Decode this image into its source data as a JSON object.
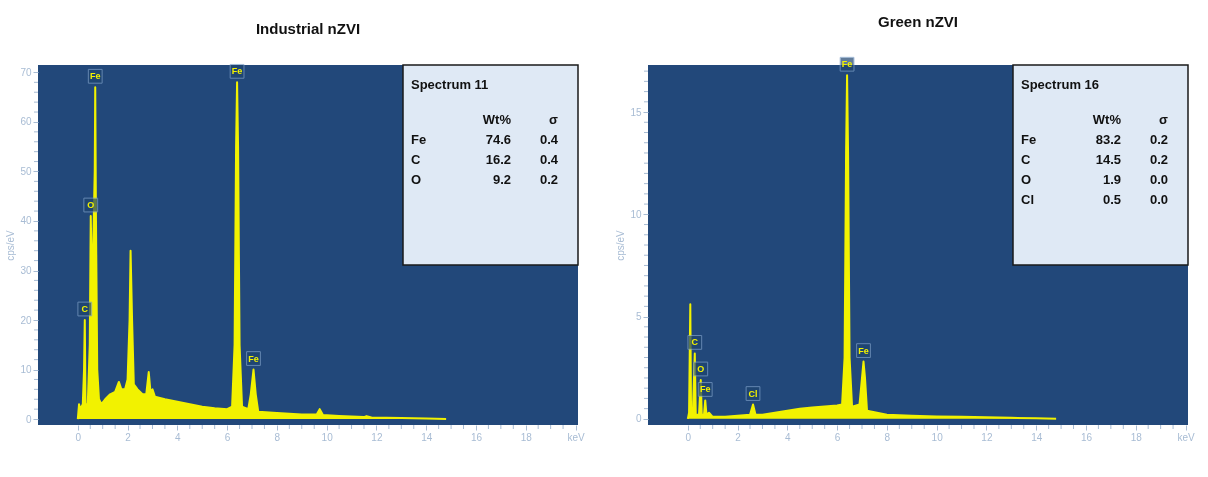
{
  "chart_data": [
    {
      "type": "area",
      "title": "Industrial nZVI",
      "ylabel": "cps/eV",
      "grid": false,
      "xlim": [
        -1.6,
        20.1
      ],
      "ylim": [
        -1.2,
        71.5
      ],
      "xticks": [
        0,
        {
          "value": 0.5,
          "label": null
        },
        {
          "value": 1,
          "label": null
        },
        {
          "value": 1.5,
          "label": null
        },
        2,
        {
          "value": 2.5,
          "label": null
        },
        {
          "value": 3,
          "label": null
        },
        {
          "value": 3.5,
          "label": null
        },
        4,
        {
          "value": 4.5,
          "label": null
        },
        {
          "value": 5,
          "label": null
        },
        {
          "value": 5.5,
          "label": null
        },
        6,
        {
          "value": 6.5,
          "label": null
        },
        {
          "value": 7,
          "label": null
        },
        {
          "value": 7.5,
          "label": null
        },
        8,
        {
          "value": 8.5,
          "label": null
        },
        {
          "value": 9,
          "label": null
        },
        {
          "value": 9.5,
          "label": null
        },
        10,
        {
          "value": 10.5,
          "label": null
        },
        {
          "value": 11,
          "label": null
        },
        {
          "value": 11.5,
          "label": null
        },
        12,
        {
          "value": 12.5,
          "label": null
        },
        {
          "value": 13,
          "label": null
        },
        {
          "value": 13.5,
          "label": null
        },
        14,
        {
          "value": 14.5,
          "label": null
        },
        {
          "value": 15,
          "label": null
        },
        {
          "value": 15.5,
          "label": null
        },
        16,
        {
          "value": 16.5,
          "label": null
        },
        {
          "value": 17,
          "label": null
        },
        {
          "value": 17.5,
          "label": null
        },
        18,
        {
          "value": 18.5,
          "label": null
        },
        {
          "value": 19,
          "label": null
        },
        {
          "value": 19.5,
          "label": null
        },
        {
          "value": 20,
          "label": "keV"
        }
      ],
      "yticks": [
        0,
        {
          "value": 2,
          "label": null
        },
        {
          "value": 4,
          "label": null
        },
        {
          "value": 6,
          "label": null
        },
        {
          "value": 8,
          "label": null
        },
        10,
        {
          "value": 12,
          "label": null
        },
        {
          "value": 14,
          "label": null
        },
        {
          "value": 16,
          "label": null
        },
        {
          "value": 18,
          "label": null
        },
        20,
        {
          "value": 22,
          "label": null
        },
        {
          "value": 24,
          "label": null
        },
        {
          "value": 26,
          "label": null
        },
        {
          "value": 28,
          "label": null
        },
        30,
        {
          "value": 32,
          "label": null
        },
        {
          "value": 34,
          "label": null
        },
        {
          "value": 36,
          "label": null
        },
        {
          "value": 38,
          "label": null
        },
        40,
        {
          "value": 42,
          "label": null
        },
        {
          "value": 44,
          "label": null
        },
        {
          "value": 46,
          "label": null
        },
        {
          "value": 48,
          "label": null
        },
        50,
        {
          "value": 52,
          "label": null
        },
        {
          "value": 54,
          "label": null
        },
        {
          "value": 56,
          "label": null
        },
        {
          "value": 58,
          "label": null
        },
        60,
        {
          "value": 62,
          "label": null
        },
        {
          "value": 64,
          "label": null
        },
        {
          "value": 66,
          "label": null
        },
        {
          "value": 68,
          "label": null
        },
        70
      ],
      "series": [
        {
          "color": "#f2f200",
          "x": [
            0,
            0.05,
            0.1,
            0.2,
            0.25,
            0.28,
            0.31,
            0.4,
            0.48,
            0.52,
            0.56,
            0.62,
            0.68,
            0.7,
            0.73,
            0.78,
            0.85,
            0.95,
            1.1,
            1.3,
            1.5,
            1.65,
            1.75,
            1.9,
            2.0,
            2.08,
            2.12,
            2.18,
            2.25,
            2.4,
            2.6,
            2.75,
            2.85,
            2.92,
            3.0,
            3.1,
            3.5,
            4,
            4.5,
            5,
            5.5,
            6.0,
            6.2,
            6.3,
            6.36,
            6.4,
            6.44,
            6.5,
            6.6,
            6.85,
            6.95,
            7.06,
            7.15,
            7.25,
            8,
            9,
            9.6,
            9.72,
            9.85,
            10.5,
            11.5,
            11.6,
            11.8,
            13,
            14,
            14.8
          ],
          "values": [
            0,
            3,
            2,
            3,
            10,
            20,
            3,
            3,
            15,
            41,
            30,
            35,
            50,
            67,
            40,
            10,
            4,
            3,
            4,
            5,
            5.5,
            7.5,
            6,
            6,
            8,
            20,
            34,
            20,
            7,
            6,
            5,
            5,
            9.5,
            5.5,
            6,
            4.5,
            4,
            3.5,
            3,
            2.5,
            2.2,
            2,
            2.5,
            15,
            55,
            68,
            55,
            15,
            2.5,
            2,
            5,
            10,
            5,
            1.5,
            1.2,
            0.9,
            0.9,
            2,
            0.8,
            0.6,
            0.4,
            0.6,
            0.3,
            0.2,
            0.1,
            0
          ]
        }
      ],
      "annotations": [
        {
          "text": "C",
          "x": 0.28,
          "y": 20
        },
        {
          "text": "O",
          "x": 0.52,
          "y": 41
        },
        {
          "text": "Fe",
          "x": 0.7,
          "y": 67
        },
        {
          "text": "Fe",
          "x": 6.4,
          "y": 68
        },
        {
          "text": "Fe",
          "x": 7.06,
          "y": 10
        },
        "Spectrum 11",
        "Wt%  σ",
        "Fe  74.6  0.4",
        "C  16.2  0.4",
        "O  9.2  0.2"
      ]
    },
    {
      "type": "area",
      "title": "Green nZVI",
      "ylabel": "cps/eV",
      "grid": false,
      "xlim": [
        -1.6,
        20.1
      ],
      "ylim": [
        -0.3,
        17.3
      ],
      "xticks": [
        0,
        {
          "value": 0.5,
          "label": null
        },
        {
          "value": 1,
          "label": null
        },
        {
          "value": 1.5,
          "label": null
        },
        2,
        {
          "value": 2.5,
          "label": null
        },
        {
          "value": 3,
          "label": null
        },
        {
          "value": 3.5,
          "label": null
        },
        4,
        {
          "value": 4.5,
          "label": null
        },
        {
          "value": 5,
          "label": null
        },
        {
          "value": 5.5,
          "label": null
        },
        6,
        {
          "value": 6.5,
          "label": null
        },
        {
          "value": 7,
          "label": null
        },
        {
          "value": 7.5,
          "label": null
        },
        8,
        {
          "value": 8.5,
          "label": null
        },
        {
          "value": 9,
          "label": null
        },
        {
          "value": 9.5,
          "label": null
        },
        10,
        {
          "value": 10.5,
          "label": null
        },
        {
          "value": 11,
          "label": null
        },
        {
          "value": 11.5,
          "label": null
        },
        12,
        {
          "value": 12.5,
          "label": null
        },
        {
          "value": 13,
          "label": null
        },
        {
          "value": 13.5,
          "label": null
        },
        14,
        {
          "value": 14.5,
          "label": null
        },
        {
          "value": 15,
          "label": null
        },
        {
          "value": 15.5,
          "label": null
        },
        16,
        {
          "value": 16.5,
          "label": null
        },
        {
          "value": 17,
          "label": null
        },
        {
          "value": 17.5,
          "label": null
        },
        18,
        {
          "value": 18.5,
          "label": null
        },
        {
          "value": 19,
          "label": null
        },
        {
          "value": 19.5,
          "label": null
        },
        {
          "value": 20,
          "label": "keV"
        }
      ],
      "yticks": [
        0,
        {
          "value": 0.5,
          "label": null
        },
        {
          "value": 1,
          "label": null
        },
        {
          "value": 1.5,
          "label": null
        },
        {
          "value": 2,
          "label": null
        },
        {
          "value": 2.5,
          "label": null
        },
        {
          "value": 3,
          "label": null
        },
        {
          "value": 3.5,
          "label": null
        },
        {
          "value": 4,
          "label": null
        },
        {
          "value": 4.5,
          "label": null
        },
        5,
        {
          "value": 5.5,
          "label": null
        },
        {
          "value": 6,
          "label": null
        },
        {
          "value": 6.5,
          "label": null
        },
        {
          "value": 7,
          "label": null
        },
        {
          "value": 7.5,
          "label": null
        },
        {
          "value": 8,
          "label": null
        },
        {
          "value": 8.5,
          "label": null
        },
        {
          "value": 9,
          "label": null
        },
        {
          "value": 9.5,
          "label": null
        },
        10,
        {
          "value": 10.5,
          "label": null
        },
        {
          "value": 11,
          "label": null
        },
        {
          "value": 11.5,
          "label": null
        },
        {
          "value": 12,
          "label": null
        },
        {
          "value": 12.5,
          "label": null
        },
        {
          "value": 13,
          "label": null
        },
        {
          "value": 13.5,
          "label": null
        },
        {
          "value": 14,
          "label": null
        },
        {
          "value": 14.5,
          "label": null
        },
        15,
        {
          "value": 15.5,
          "label": null
        },
        {
          "value": 16,
          "label": null
        },
        {
          "value": 16.5,
          "label": null
        },
        {
          "value": 17,
          "label": null
        }
      ],
      "series": [
        {
          "color": "#f2f200",
          "x": [
            0,
            0.05,
            0.1,
            0.13,
            0.2,
            0.28,
            0.32,
            0.45,
            0.52,
            0.56,
            0.65,
            0.7,
            0.75,
            0.85,
            1,
            1.5,
            2.0,
            2.5,
            2.62,
            2.72,
            3.0,
            3.5,
            4,
            4.5,
            5,
            5.5,
            6.0,
            6.2,
            6.3,
            6.36,
            6.4,
            6.44,
            6.5,
            6.6,
            6.9,
            7.0,
            7.06,
            7.12,
            7.2,
            8,
            9,
            10,
            11,
            12,
            13,
            14,
            14.8
          ],
          "values": [
            0,
            0.3,
            5.6,
            0.3,
            0.2,
            3.2,
            0.2,
            0.2,
            1.9,
            0.2,
            0.2,
            0.9,
            0.2,
            0.3,
            0.1,
            0.1,
            0.15,
            0.2,
            0.7,
            0.2,
            0.2,
            0.3,
            0.4,
            0.5,
            0.55,
            0.6,
            0.65,
            0.7,
            3,
            13,
            16.8,
            13,
            3,
            0.6,
            0.7,
            2,
            2.8,
            2,
            0.4,
            0.2,
            0.15,
            0.12,
            0.1,
            0.08,
            0.05,
            0.03,
            0
          ]
        }
      ],
      "annotations": [
        {
          "text": "C",
          "x": 0.28,
          "y": 3.2
        },
        {
          "text": "O",
          "x": 0.52,
          "y": 1.9
        },
        {
          "text": "Fe",
          "x": 0.7,
          "y": 0.9
        },
        {
          "text": "Cl",
          "x": 2.62,
          "y": 0.7
        },
        {
          "text": "Fe",
          "x": 6.4,
          "y": 16.8
        },
        {
          "text": "Fe",
          "x": 7.06,
          "y": 2.8
        },
        "Spectrum 16",
        "Wt%  σ",
        "Fe  83.2  0.2",
        "C  14.5  0.2",
        "O  1.9  0.0",
        "Cl  0.5  0.0"
      ]
    }
  ]
}
